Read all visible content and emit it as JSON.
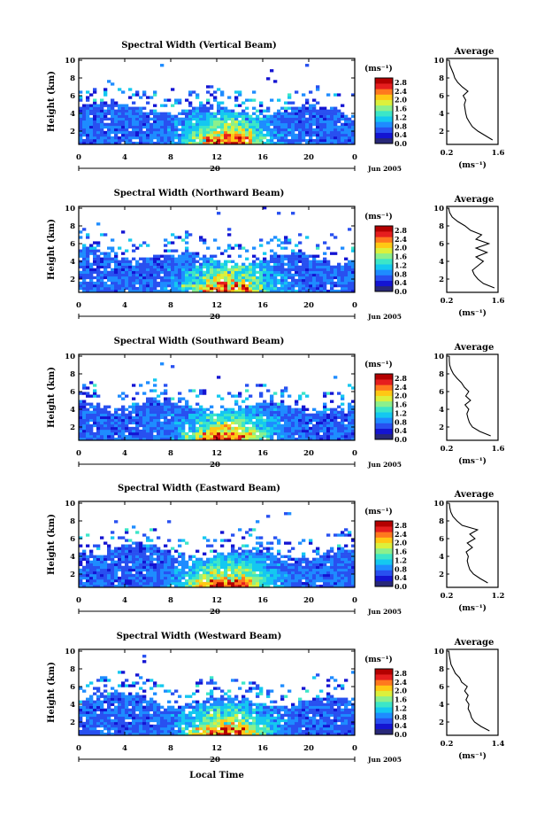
{
  "shared": {
    "ylabel": "Height (km)",
    "yticks": [
      2,
      4,
      6,
      8,
      10
    ],
    "ylim": [
      0.5,
      10.2
    ],
    "xticks": [
      "0",
      "4",
      "8",
      "12",
      "16",
      "20",
      "0"
    ],
    "xlim": [
      0,
      24
    ],
    "date_marker": "20",
    "date_label": "Jun 2005",
    "colorbar_unit": "(ms⁻¹)",
    "colorbar_ticks": [
      "2.8",
      "2.4",
      "2.0",
      "1.6",
      "1.2",
      "0.8",
      "0.4",
      "0.0"
    ],
    "colorbar_range": [
      0,
      3.0
    ],
    "avg_title": "Average",
    "avg_xlabel": "(ms⁻¹)",
    "xlabel_bottom": "Local Time"
  },
  "colors": {
    "colormap": [
      "#282878",
      "#1414d2",
      "#2850f0",
      "#1e8cff",
      "#14c8f0",
      "#3ce6c8",
      "#8cf08c",
      "#dcf03c",
      "#ffc814",
      "#ff781e",
      "#e61e1e",
      "#b40000"
    ]
  },
  "chart_data": [
    {
      "type": "heatmap",
      "title": "Spectral Width (Vertical Beam)",
      "avg_xticks": [
        "0.2",
        "1.6"
      ],
      "avg_xlim": [
        0.2,
        1.6
      ],
      "avg_profile": {
        "height_km": [
          1.0,
          1.5,
          2.0,
          2.5,
          3.0,
          3.5,
          4.0,
          4.5,
          5.0,
          5.5,
          6.0,
          6.5,
          7.0,
          7.5,
          8.0,
          8.5,
          9.0,
          9.5,
          10.0
        ],
        "width": [
          1.45,
          1.25,
          1.05,
          0.9,
          0.82,
          0.75,
          0.72,
          0.7,
          0.68,
          0.72,
          0.65,
          0.78,
          0.62,
          0.5,
          0.42,
          0.38,
          0.33,
          0.28,
          0.27
        ]
      }
    },
    {
      "type": "heatmap",
      "title": "Spectral Width (Northward Beam)",
      "avg_xticks": [
        "0.2",
        "1.6"
      ],
      "avg_xlim": [
        0.2,
        1.6
      ],
      "avg_profile": {
        "height_km": [
          1.0,
          1.5,
          2.0,
          2.5,
          3.0,
          3.5,
          4.0,
          4.5,
          5.0,
          5.5,
          6.0,
          6.5,
          7.0,
          7.5,
          8.0,
          8.5,
          9.0,
          9.5,
          10.0
        ],
        "width": [
          1.5,
          1.2,
          1.05,
          0.95,
          0.9,
          1.05,
          1.2,
          1.0,
          1.3,
          1.0,
          1.35,
          1.0,
          1.15,
          0.85,
          0.7,
          0.5,
          0.35,
          0.28,
          0.25
        ]
      }
    },
    {
      "type": "heatmap",
      "title": "Spectral Width (Southward Beam)",
      "avg_xticks": [
        "0.2",
        "1.6"
      ],
      "avg_xlim": [
        0.2,
        1.6
      ],
      "avg_profile": {
        "height_km": [
          1.0,
          1.5,
          2.0,
          2.5,
          3.0,
          3.5,
          4.0,
          4.5,
          5.0,
          5.5,
          6.0,
          6.5,
          7.0,
          7.5,
          8.0,
          8.5,
          9.0,
          9.5,
          10.0
        ],
        "width": [
          1.4,
          1.1,
          0.9,
          0.82,
          0.78,
          0.75,
          0.8,
          0.7,
          0.85,
          0.72,
          0.8,
          0.68,
          0.6,
          0.48,
          0.38,
          0.32,
          0.28,
          0.27,
          0.27
        ]
      }
    },
    {
      "type": "heatmap",
      "title": "Spectral Width (Eastward Beam)",
      "avg_xticks": [
        "0.2",
        "1.2"
      ],
      "avg_xlim": [
        0.2,
        1.2
      ],
      "avg_profile": {
        "height_km": [
          1.0,
          1.5,
          2.0,
          2.5,
          3.0,
          3.5,
          4.0,
          4.5,
          5.0,
          5.5,
          6.0,
          6.5,
          7.0,
          7.5,
          8.0,
          8.5,
          9.0,
          9.5,
          10.0
        ],
        "width": [
          1.0,
          0.85,
          0.72,
          0.65,
          0.62,
          0.6,
          0.62,
          0.58,
          0.7,
          0.6,
          0.75,
          0.65,
          0.8,
          0.5,
          0.4,
          0.32,
          0.28,
          0.26,
          0.25
        ]
      }
    },
    {
      "type": "heatmap",
      "title": "Spectral Width (Westward Beam)",
      "avg_xticks": [
        "0.2",
        "1.4"
      ],
      "avg_xlim": [
        0.2,
        1.4
      ],
      "avg_profile": {
        "height_km": [
          1.0,
          1.5,
          2.0,
          2.5,
          3.0,
          3.5,
          4.0,
          4.5,
          5.0,
          5.5,
          6.0,
          6.5,
          7.0,
          7.5,
          8.0,
          8.5,
          9.0,
          9.5,
          10.0
        ],
        "width": [
          1.2,
          1.0,
          0.85,
          0.78,
          0.75,
          0.7,
          0.72,
          0.65,
          0.7,
          0.62,
          0.68,
          0.55,
          0.5,
          0.4,
          0.35,
          0.3,
          0.28,
          0.26,
          0.25
        ]
      }
    }
  ]
}
